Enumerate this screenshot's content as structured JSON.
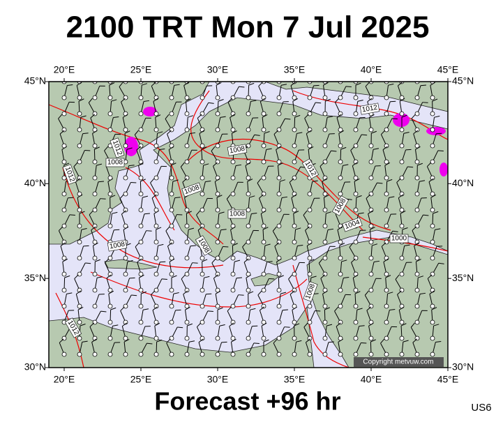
{
  "header": {
    "title": "2100 TRT Mon 7 Jul 2025"
  },
  "axes": {
    "lon_ticks": [
      {
        "value": 20,
        "label": "20°E"
      },
      {
        "value": 25,
        "label": "25°E"
      },
      {
        "value": 30,
        "label": "30°E"
      },
      {
        "value": 35,
        "label": "35°E"
      },
      {
        "value": 40,
        "label": "40°E"
      },
      {
        "value": 45,
        "label": "45°E"
      }
    ],
    "lat_ticks": [
      {
        "value": 45,
        "label": "45°N"
      },
      {
        "value": 40,
        "label": "40°N"
      },
      {
        "value": 35,
        "label": "35°N"
      },
      {
        "value": 30,
        "label": "30°N"
      }
    ]
  },
  "isobar_labels": [
    "1012",
    "1012",
    "1008",
    "1012",
    "1008",
    "1008",
    "1008",
    "1008",
    "1008",
    "1012",
    "1008",
    "1004",
    "1000",
    "1008",
    "1012"
  ],
  "footer": {
    "copyright": "Copyright metvuw.com",
    "forecast": "Forecast +96 hr",
    "code": "US6"
  }
}
